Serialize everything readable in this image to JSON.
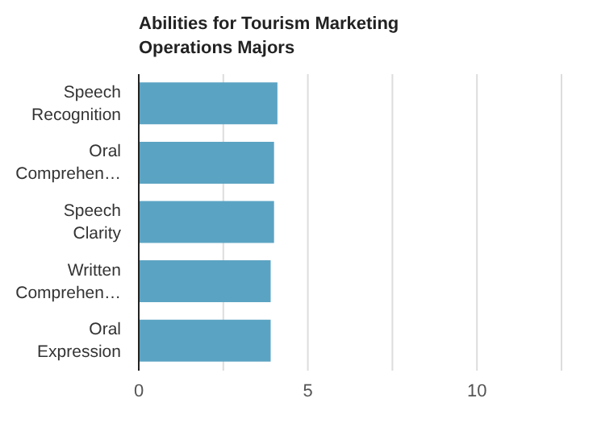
{
  "chart_data": {
    "type": "bar",
    "orientation": "horizontal",
    "title": "Abilities for Tourism Marketing Operations Majors",
    "categories": [
      "Speech Recognition",
      "Oral Comprehen…",
      "Speech Clarity",
      "Written Comprehen…",
      "Oral Expression"
    ],
    "values": [
      4.1,
      4.0,
      4.0,
      3.9,
      3.9
    ],
    "color": "#5ba3c3",
    "xlim": [
      0,
      12.5
    ],
    "xticks": [
      0,
      {
        "value": 2.5,
        "label": null
      },
      5,
      {
        "value": 7.5,
        "label": null
      },
      10
    ],
    "grid": "x"
  }
}
